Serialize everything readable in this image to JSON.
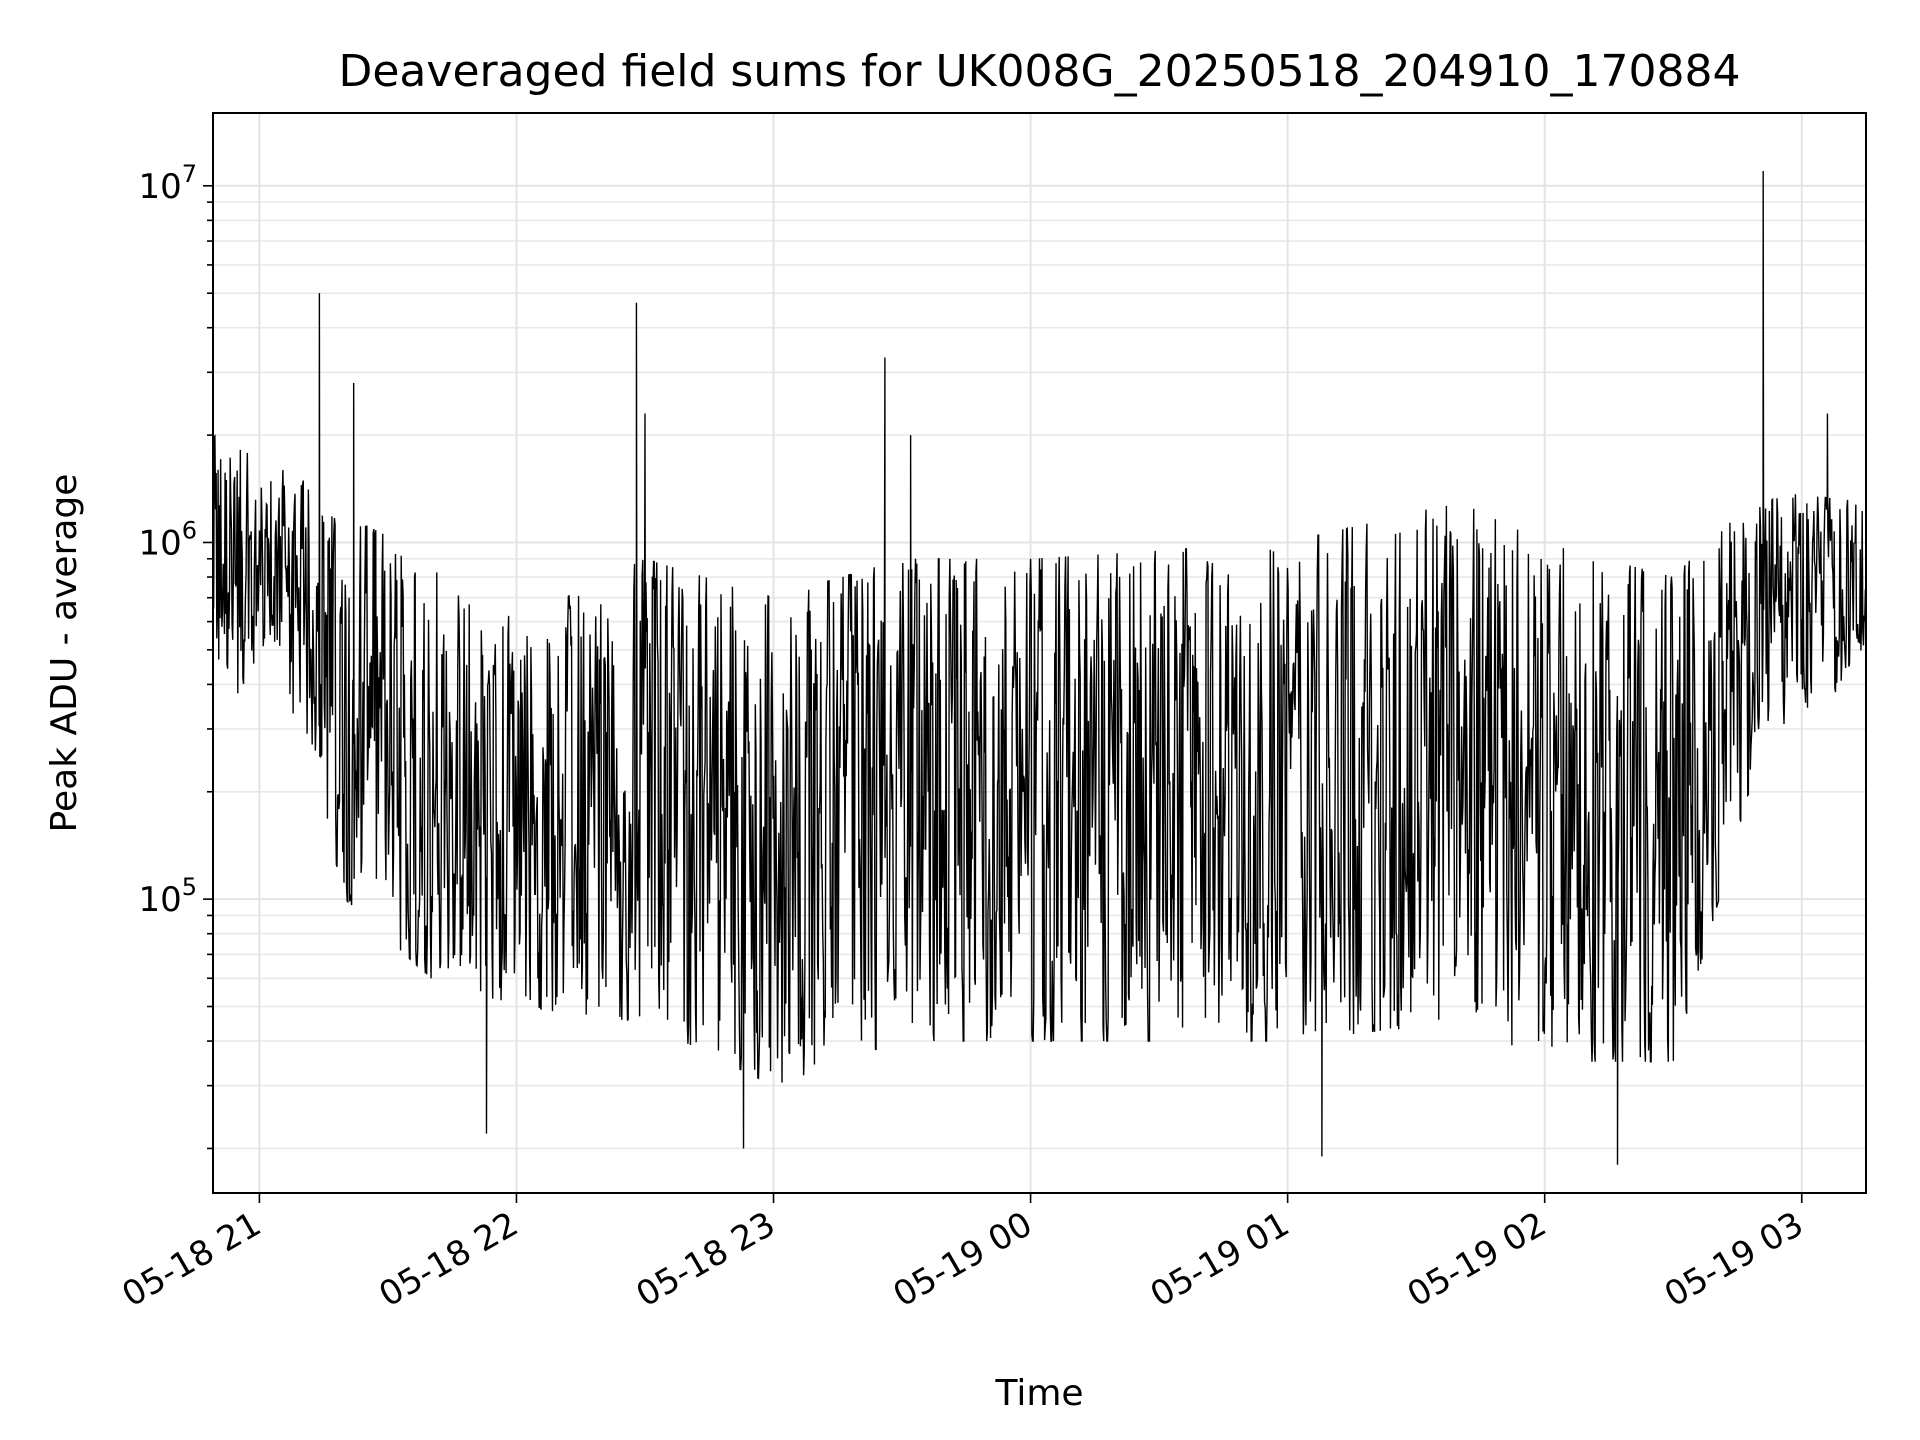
{
  "chart_data": {
    "type": "line",
    "title": "Deaveraged field sums for UK008G_20250518_204910_170884",
    "xlabel": "Time",
    "ylabel": "Peak ADU - average",
    "yscale": "log",
    "ylim": [
      15000,
      16000000
    ],
    "xlim": [
      "2025-05-18T20:49:10",
      "2025-05-19T03:15:00"
    ],
    "grid": true,
    "x_ticks": [
      {
        "t": "2025-05-18T21:00:00",
        "label": "05-18 21"
      },
      {
        "t": "2025-05-18T22:00:00",
        "label": "05-18 22"
      },
      {
        "t": "2025-05-18T23:00:00",
        "label": "05-18 23"
      },
      {
        "t": "2025-05-19T00:00:00",
        "label": "05-19 00"
      },
      {
        "t": "2025-05-19T01:00:00",
        "label": "05-19 01"
      },
      {
        "t": "2025-05-19T02:00:00",
        "label": "05-19 02"
      },
      {
        "t": "2025-05-19T03:00:00",
        "label": "05-19 03"
      }
    ],
    "y_ticks": [
      {
        "value": 100000,
        "base": "10",
        "exp": "5"
      },
      {
        "value": 1000000,
        "base": "10",
        "exp": "6"
      },
      {
        "value": 10000000,
        "base": "10",
        "exp": "7"
      }
    ],
    "series": [
      {
        "color": "#000000",
        "start": "2025-05-18T20:49:10",
        "end": "2025-05-19T03:15:00",
        "envelope": [
          {
            "t": "2025-05-18T20:49:10",
            "low": 400000,
            "high": 2000000
          },
          {
            "t": "2025-05-18T21:10:00",
            "low": 300000,
            "high": 1500000
          },
          {
            "t": "2025-05-18T21:20:00",
            "low": 100000,
            "high": 1200000
          },
          {
            "t": "2025-05-18T21:40:00",
            "low": 60000,
            "high": 900000
          },
          {
            "t": "2025-05-18T22:00:00",
            "low": 50000,
            "high": 600000
          },
          {
            "t": "2025-05-18T22:30:00",
            "low": 45000,
            "high": 900000
          },
          {
            "t": "2025-05-18T23:00:00",
            "low": 30000,
            "high": 700000
          },
          {
            "t": "2025-05-18T23:30:00",
            "low": 40000,
            "high": 900000
          },
          {
            "t": "2025-05-19T00:00:00",
            "low": 40000,
            "high": 900000
          },
          {
            "t": "2025-05-19T01:00:00",
            "low": 40000,
            "high": 1000000
          },
          {
            "t": "2025-05-19T01:40:00",
            "low": 45000,
            "high": 1300000
          },
          {
            "t": "2025-05-19T02:00:00",
            "low": 35000,
            "high": 1000000
          },
          {
            "t": "2025-05-19T02:30:00",
            "low": 35000,
            "high": 800000
          },
          {
            "t": "2025-05-19T02:50:00",
            "low": 250000,
            "high": 1400000
          },
          {
            "t": "2025-05-19T03:15:00",
            "low": 450000,
            "high": 1300000
          }
        ],
        "peaks": [
          {
            "t": "2025-05-18T21:14:00",
            "value": 5000000
          },
          {
            "t": "2025-05-18T21:22:00",
            "value": 2800000
          },
          {
            "t": "2025-05-18T22:28:00",
            "value": 4700000
          },
          {
            "t": "2025-05-18T22:30:00",
            "value": 2300000
          },
          {
            "t": "2025-05-18T23:26:00",
            "value": 3300000
          },
          {
            "t": "2025-05-18T23:32:00",
            "value": 2000000
          },
          {
            "t": "2025-05-19T02:51:00",
            "value": 11000000
          },
          {
            "t": "2025-05-19T03:06:00",
            "value": 2300000
          }
        ],
        "troughs": [
          {
            "t": "2025-05-18T21:53:00",
            "value": 22000
          },
          {
            "t": "2025-05-18T22:53:00",
            "value": 20000
          },
          {
            "t": "2025-05-19T01:08:00",
            "value": 19000
          },
          {
            "t": "2025-05-19T02:17:00",
            "value": 18000
          }
        ]
      }
    ]
  }
}
